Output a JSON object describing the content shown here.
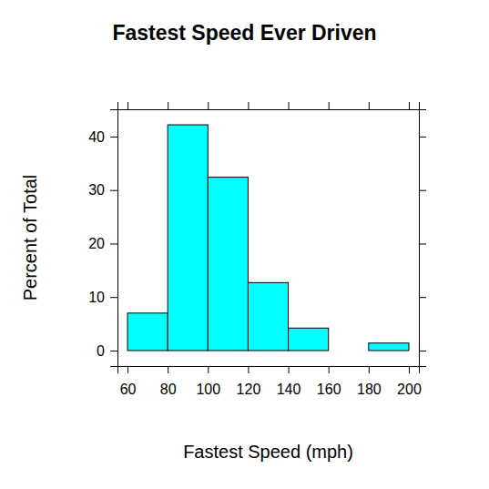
{
  "chart_data": {
    "type": "histogram",
    "title": "Fastest Speed Ever Driven",
    "x_label": "Fastest Speed (mph)",
    "y_label": "Percent of Total",
    "bins": [
      60,
      80,
      100,
      120,
      140,
      160,
      180,
      200
    ],
    "values": [
      7.0,
      42.2,
      32.4,
      12.7,
      4.2,
      0,
      1.4
    ],
    "color": "#00ffff",
    "xlim": [
      55,
      205
    ],
    "ylim": [
      -2.9,
      45.1
    ],
    "xticks": [
      60,
      80,
      100,
      120,
      140,
      160,
      180,
      200
    ],
    "yticks": [
      0,
      10,
      20,
      30,
      40
    ]
  }
}
